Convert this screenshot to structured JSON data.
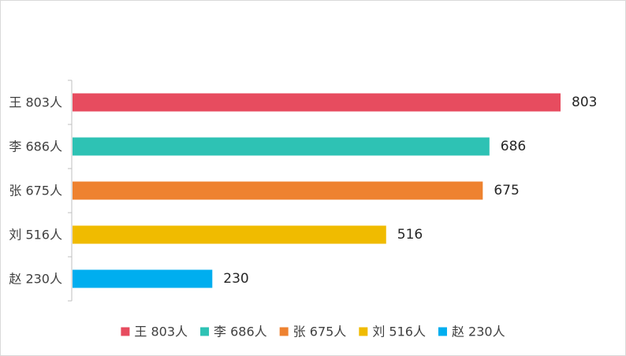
{
  "chart_data": {
    "type": "bar",
    "orientation": "horizontal",
    "title": "",
    "xlabel": "",
    "ylabel": "",
    "categories": [
      "王 803人",
      "李 686人",
      "张 675人",
      "刘 516人",
      "赵 230人"
    ],
    "values": [
      803,
      686,
      675,
      516,
      230
    ],
    "value_labels": [
      "803",
      "686",
      "675",
      "516",
      "230"
    ],
    "colors": [
      "#e74c5f",
      "#2ec2b4",
      "#ee8230",
      "#f0bb00",
      "#00aeef"
    ],
    "xlim": [
      0,
      870
    ],
    "legend": {
      "position": "bottom",
      "entries": [
        "王 803人",
        "李 686人",
        "张 675人",
        "刘 516人",
        "赵 230人"
      ]
    },
    "grid": false
  }
}
